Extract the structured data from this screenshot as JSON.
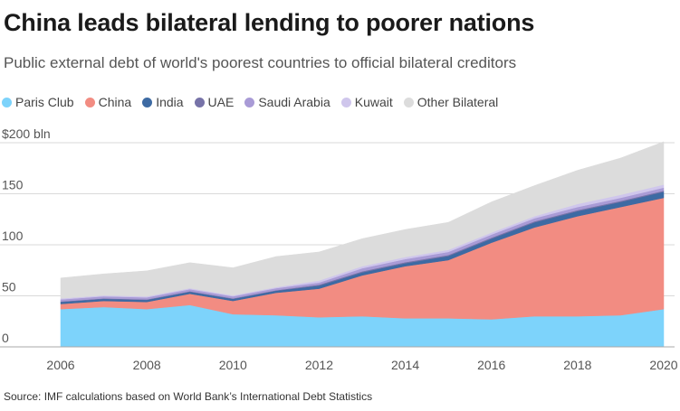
{
  "chart_data": {
    "type": "area",
    "stacked": true,
    "title": "China leads bilateral lending to poorer nations",
    "subtitle": "Public external debt of world's poorest countries to official bilateral creditors",
    "source": "Source: IMF calculations based on World Bank’s International Debt Statistics",
    "x": [
      2006,
      2007,
      2008,
      2009,
      2010,
      2011,
      2012,
      2013,
      2014,
      2015,
      2016,
      2017,
      2018,
      2019,
      2020
    ],
    "x_tick_labels": [
      "2006",
      "2008",
      "2010",
      "2012",
      "2014",
      "2016",
      "2018",
      "2020"
    ],
    "x_ticks": [
      2006,
      2008,
      2010,
      2012,
      2014,
      2016,
      2018,
      2020
    ],
    "y_tick_labels": [
      "$200 bln",
      "150",
      "100",
      "50",
      "0"
    ],
    "y_ticks": [
      200,
      150,
      100,
      50,
      0
    ],
    "ylim": [
      0,
      200
    ],
    "grid": true,
    "legend_position": "top-left",
    "series": [
      {
        "name": "Paris Club",
        "color": "#7dd3fb",
        "values": [
          37,
          39,
          37,
          41,
          32,
          31,
          29,
          30,
          28,
          28,
          27,
          30,
          30,
          31,
          37
        ]
      },
      {
        "name": "China",
        "color": "#f28c82",
        "values": [
          5,
          6,
          7,
          11,
          13,
          22,
          28,
          40,
          51,
          57,
          75,
          87,
          98,
          106,
          109
        ]
      },
      {
        "name": "India",
        "color": "#3d6aa3",
        "values": [
          2,
          2,
          2,
          2,
          2,
          2,
          3,
          3,
          3,
          4,
          4,
          5,
          5,
          5,
          6
        ]
      },
      {
        "name": "UAE",
        "color": "#7773a8",
        "values": [
          0.5,
          0.5,
          0.5,
          0.5,
          0.5,
          0.5,
          1,
          1,
          1,
          1,
          1,
          1,
          1,
          1,
          1
        ]
      },
      {
        "name": "Saudi Arabia",
        "color": "#a99bd6",
        "values": [
          2,
          2,
          2,
          2,
          2,
          2,
          2,
          3,
          3,
          3,
          3,
          3,
          3,
          3,
          3
        ]
      },
      {
        "name": "Kuwait",
        "color": "#cfc6ec",
        "values": [
          1,
          1,
          1,
          1,
          1,
          1,
          2,
          2,
          2,
          2,
          2,
          2,
          3,
          3,
          3
        ]
      },
      {
        "name": "Other Bilateral",
        "color": "#dcdcdc",
        "values": [
          20,
          21,
          25,
          25,
          27,
          30,
          28,
          27,
          27,
          27,
          30,
          30,
          33,
          36,
          42
        ]
      }
    ]
  }
}
